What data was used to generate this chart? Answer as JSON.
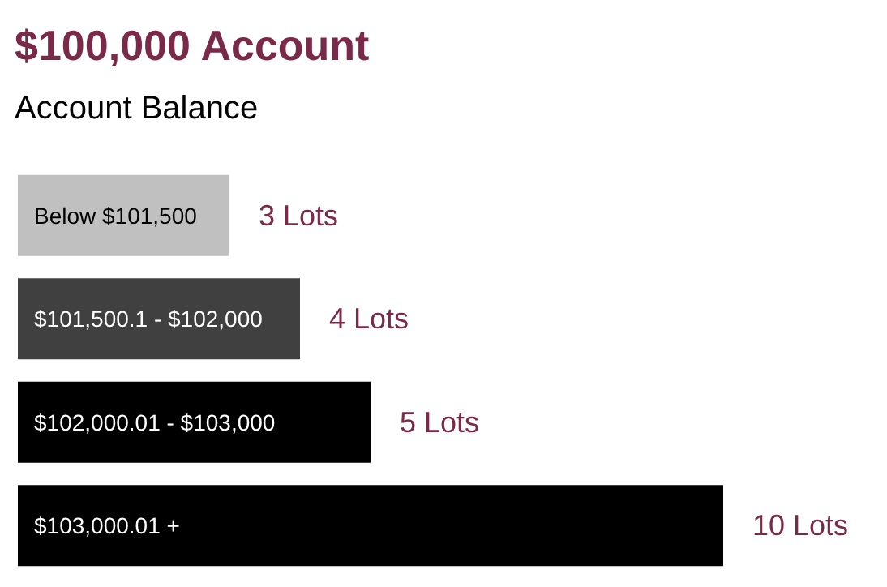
{
  "chart_data": {
    "type": "bar",
    "orientation": "horizontal",
    "title": "$100,000 Account",
    "subtitle": "Account Balance",
    "categories": [
      "Below $101,500",
      "$101,500.1 - $102,000",
      "$102,000.01 - $103,000",
      "$103,000.01 +"
    ],
    "values": [
      3,
      4,
      5,
      10
    ],
    "colors": [
      "#c0c0c0",
      "#404040",
      "#000000",
      "#000000"
    ],
    "value_labels": [
      "3 Lots",
      "4 Lots",
      "5 Lots",
      "10 Lots"
    ]
  }
}
